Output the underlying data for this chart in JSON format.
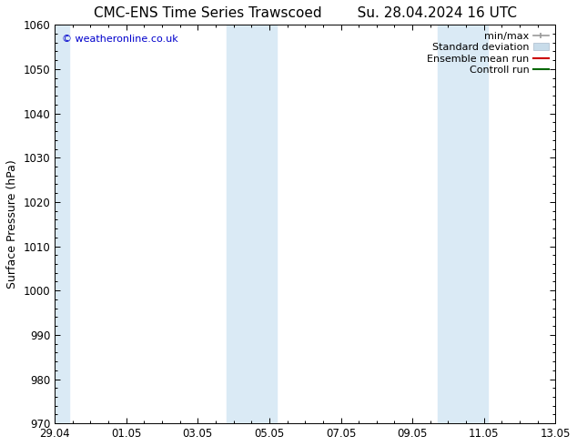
{
  "title_left": "CMC-ENS Time Series Trawscoed",
  "title_right": "Su. 28.04.2024 16 UTC",
  "ylabel": "Surface Pressure (hPa)",
  "ylim": [
    970,
    1060
  ],
  "yticks": [
    970,
    980,
    990,
    1000,
    1010,
    1020,
    1030,
    1040,
    1050,
    1060
  ],
  "xtick_labels": [
    "29.04",
    "01.05",
    "03.05",
    "05.05",
    "07.05",
    "09.05",
    "11.05",
    "13.05"
  ],
  "xtick_positions": [
    0,
    2,
    4,
    6,
    8,
    10,
    12,
    14
  ],
  "xlim": [
    0,
    14
  ],
  "shaded_regions": [
    {
      "x_start": 0.0,
      "x_end": 0.4
    },
    {
      "x_start": 4.8,
      "x_end": 6.2
    },
    {
      "x_start": 10.7,
      "x_end": 12.1
    }
  ],
  "shade_color": "#daeaf5",
  "watermark_text": "© weatheronline.co.uk",
  "watermark_color": "#0000cc",
  "legend_items": [
    {
      "label": "min/max"
    },
    {
      "label": "Standard deviation"
    },
    {
      "label": "Ensemble mean run",
      "color": "#cc0000"
    },
    {
      "label": "Controll run",
      "color": "#006600"
    }
  ],
  "legend_minmax_color": "#999999",
  "legend_std_color": "#c8dcea",
  "bg_color": "#ffffff",
  "spine_color": "#000000",
  "title_fontsize": 11,
  "label_fontsize": 9,
  "tick_fontsize": 8.5,
  "legend_fontsize": 8
}
